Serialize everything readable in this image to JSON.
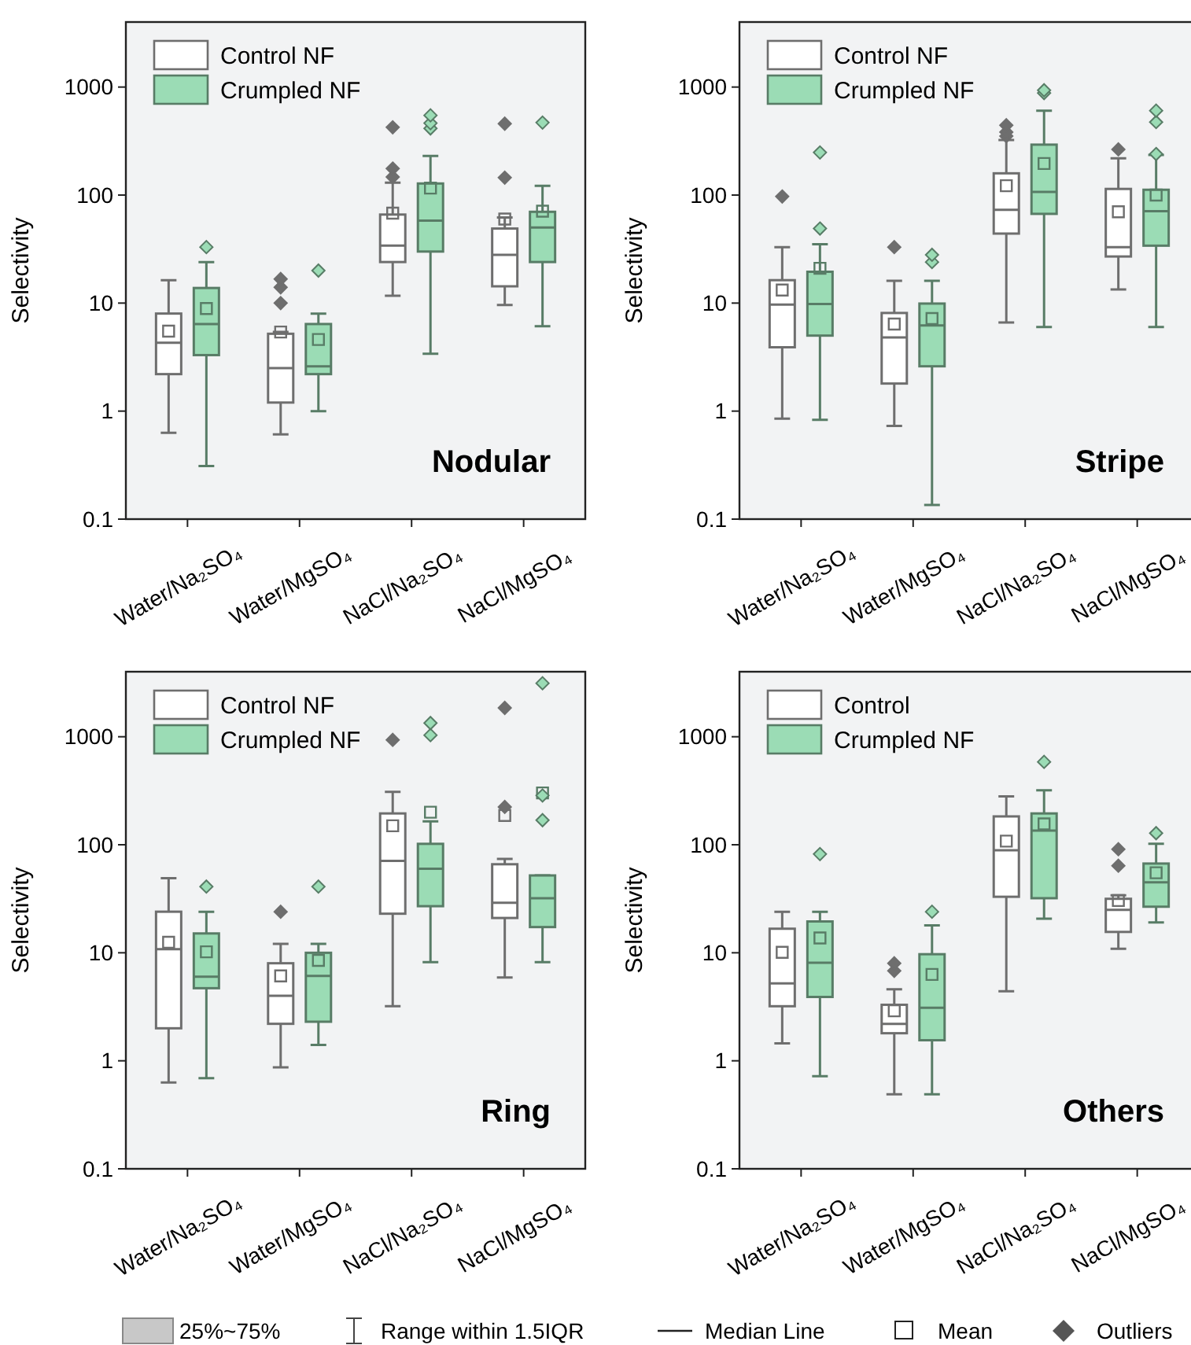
{
  "chart_data": [
    {
      "type": "box",
      "ylabel": "Selectivity",
      "categories": [
        "Water/Na₂SO₄",
        "Water/MgSO₄",
        "NaCl/Na₂SO₄",
        "NaCl/MgSO₄"
      ],
      "log": true,
      "ylim": [
        0.1,
        4000
      ],
      "yticks": [
        0.1,
        1,
        10,
        100,
        1000
      ],
      "legend": "top left",
      "annotations": [
        "Nodular"
      ],
      "series": [
        {
          "name": "Control NF",
          "color": "#6e6e6e",
          "boxes": [
            {
              "low": 0.63,
              "q1": 2.2,
              "median": 4.3,
              "q3": 8.0,
              "high": 16.3,
              "mean": 5.5
            },
            {
              "low": 0.61,
              "q1": 1.2,
              "median": 2.5,
              "q3": 5.2,
              "high": 5.4,
              "mean": 5.4,
              "outliers": [
                10,
                14,
                16.7
              ]
            },
            {
              "low": 11.7,
              "q1": 24,
              "median": 34,
              "q3": 66,
              "high": 130,
              "mean": 68,
              "outliers": [
                147,
                176,
                424
              ]
            },
            {
              "low": 9.6,
              "q1": 14.3,
              "median": 28,
              "q3": 49,
              "high": 62,
              "mean": 60,
              "outliers": [
                145,
                458
              ]
            }
          ]
        },
        {
          "name": "Crumpled NF",
          "color": "#9bdcb5",
          "boxes": [
            {
              "low": 0.31,
              "q1": 3.3,
              "median": 6.4,
              "q3": 13.8,
              "high": 24,
              "mean": 8.9,
              "outliers": [
                33
              ]
            },
            {
              "low": 1.0,
              "q1": 2.2,
              "median": 2.6,
              "q3": 6.4,
              "high": 8.0,
              "mean": 4.6,
              "outliers": [
                20
              ]
            },
            {
              "low": 3.4,
              "q1": 30,
              "median": 58,
              "q3": 128,
              "high": 230,
              "mean": 116,
              "outliers": [
                414,
                463,
                547
              ]
            },
            {
              "low": 6.1,
              "q1": 24,
              "median": 50,
              "q3": 70,
              "high": 122,
              "mean": 71,
              "outliers": [
                469
              ]
            }
          ]
        }
      ]
    },
    {
      "type": "box",
      "ylabel": "Selectivity",
      "categories": [
        "Water/Na₂SO₄",
        "Water/MgSO₄",
        "NaCl/Na₂SO₄",
        "NaCl/MgSO₄"
      ],
      "log": true,
      "ylim": [
        0.1,
        4000
      ],
      "yticks": [
        0.1,
        1,
        10,
        100,
        1000
      ],
      "legend": "top left",
      "annotations": [
        "Stripe"
      ],
      "series": [
        {
          "name": "Control NF",
          "color": "#6e6e6e",
          "boxes": [
            {
              "low": 0.85,
              "q1": 3.9,
              "median": 9.7,
              "q3": 16.3,
              "high": 33,
              "mean": 13.2,
              "outliers": [
                97
              ]
            },
            {
              "low": 0.73,
              "q1": 1.8,
              "median": 4.8,
              "q3": 8.1,
              "high": 16.1,
              "mean": 6.4,
              "outliers": [
                33
              ]
            },
            {
              "low": 6.6,
              "q1": 44,
              "median": 73,
              "q3": 159,
              "high": 324,
              "mean": 122,
              "outliers": [
                351,
                383,
                443
              ]
            },
            {
              "low": 13.4,
              "q1": 27,
              "median": 33,
              "q3": 114,
              "high": 219,
              "mean": 70,
              "outliers": [
                265
              ]
            }
          ]
        },
        {
          "name": "Crumpled NF",
          "color": "#9bdcb5",
          "boxes": [
            {
              "low": 0.83,
              "q1": 5,
              "median": 9.8,
              "q3": 19.5,
              "high": 35,
              "mean": 21,
              "outliers": [
                49,
                248
              ]
            },
            {
              "low": 0.135,
              "q1": 2.6,
              "median": 6.2,
              "q3": 9.9,
              "high": 16.1,
              "mean": 7.2,
              "outliers": [
                24,
                28
              ]
            },
            {
              "low": 6.0,
              "q1": 67,
              "median": 107,
              "q3": 293,
              "high": 605,
              "mean": 196,
              "outliers": [
                880,
                935
              ]
            },
            {
              "low": 6.0,
              "q1": 34,
              "median": 71,
              "q3": 112,
              "high": 235,
              "mean": 100,
              "outliers": [
                240,
                474,
                605
              ]
            }
          ]
        }
      ]
    },
    {
      "type": "box",
      "ylabel": "Selectivity",
      "categories": [
        "Water/Na₂SO₄",
        "Water/MgSO₄",
        "NaCl/Na₂SO₄",
        "NaCl/MgSO₄"
      ],
      "log": true,
      "ylim": [
        0.1,
        4000
      ],
      "yticks": [
        0.1,
        1,
        10,
        100,
        1000
      ],
      "legend": "top left",
      "annotations": [
        "Ring"
      ],
      "series": [
        {
          "name": "Control NF",
          "color": "#6e6e6e",
          "boxes": [
            {
              "low": 0.63,
              "q1": 2.0,
              "median": 10.8,
              "q3": 24,
              "high": 49,
              "mean": 12.5
            },
            {
              "low": 0.87,
              "q1": 2.2,
              "median": 4.0,
              "q3": 8.0,
              "high": 12.1,
              "mean": 6.1,
              "outliers": [
                24
              ]
            },
            {
              "low": 3.2,
              "q1": 23,
              "median": 71,
              "q3": 195,
              "high": 309,
              "mean": 150,
              "outliers": [
                935
              ]
            },
            {
              "low": 5.9,
              "q1": 21,
              "median": 29,
              "q3": 66,
              "high": 74,
              "mean": 187,
              "outliers": [
                224,
                1850
              ]
            }
          ]
        },
        {
          "name": "Crumpled NF",
          "color": "#9bdcb5",
          "boxes": [
            {
              "low": 0.69,
              "q1": 4.7,
              "median": 6.0,
              "q3": 15.1,
              "high": 24,
              "mean": 10.2,
              "outliers": [
                41
              ]
            },
            {
              "low": 1.4,
              "q1": 2.3,
              "median": 6.1,
              "q3": 10,
              "high": 12.1,
              "mean": 8.5,
              "outliers": [
                41
              ]
            },
            {
              "low": 8.2,
              "q1": 27,
              "median": 60,
              "q3": 102,
              "high": 165,
              "mean": 200,
              "outliers": [
                1035,
                1340
              ]
            },
            {
              "low": 8.2,
              "q1": 17.3,
              "median": 32,
              "q3": 52,
              "high": 52,
              "mean": 302,
              "outliers": [
                169,
                286,
                3130
              ]
            }
          ]
        }
      ]
    },
    {
      "type": "box",
      "ylabel": "Selectivity",
      "categories": [
        "Water/Na₂SO₄",
        "Water/MgSO₄",
        "NaCl/Na₂SO₄",
        "NaCl/MgSO₄"
      ],
      "log": true,
      "ylim": [
        0.1,
        4000
      ],
      "yticks": [
        0.1,
        1,
        10,
        100,
        1000
      ],
      "legend": "top left",
      "annotations": [
        "Others"
      ],
      "series": [
        {
          "name": "Control",
          "color": "#6e6e6e",
          "boxes": [
            {
              "low": 1.45,
              "q1": 3.2,
              "median": 5.2,
              "q3": 16.7,
              "high": 24,
              "mean": 10.1
            },
            {
              "low": 0.49,
              "q1": 1.8,
              "median": 2.2,
              "q3": 3.3,
              "high": 4.6,
              "mean": 2.9,
              "outliers": [
                6.8,
                8.0
              ]
            },
            {
              "low": 4.4,
              "q1": 33,
              "median": 89,
              "q3": 183,
              "high": 280,
              "mean": 108
            },
            {
              "low": 10.9,
              "q1": 15.6,
              "median": 25,
              "q3": 31.6,
              "high": 34,
              "mean": 30.5,
              "outliers": [
                64,
                91
              ]
            }
          ]
        },
        {
          "name": "Crumpled NF",
          "color": "#9bdcb5",
          "boxes": [
            {
              "low": 0.72,
              "q1": 3.9,
              "median": 8.1,
              "q3": 19.5,
              "high": 24,
              "mean": 13.7,
              "outliers": [
                82
              ]
            },
            {
              "low": 0.49,
              "q1": 1.55,
              "median": 3.1,
              "q3": 9.7,
              "high": 17.9,
              "mean": 6.3,
              "outliers": [
                24
              ]
            },
            {
              "low": 20.7,
              "q1": 32,
              "median": 135,
              "q3": 195,
              "high": 320,
              "mean": 156,
              "outliers": [
                585
              ]
            },
            {
              "low": 19.1,
              "q1": 26.7,
              "median": 45,
              "q3": 67,
              "high": 102,
              "mean": 55,
              "outliers": [
                128
              ]
            }
          ]
        }
      ]
    },
    {
      "type": "other",
      "annotations": [
        "25%~75%",
        "Range within 1.5IQR",
        "Median Line",
        "Mean",
        "Outliers"
      ]
    }
  ]
}
